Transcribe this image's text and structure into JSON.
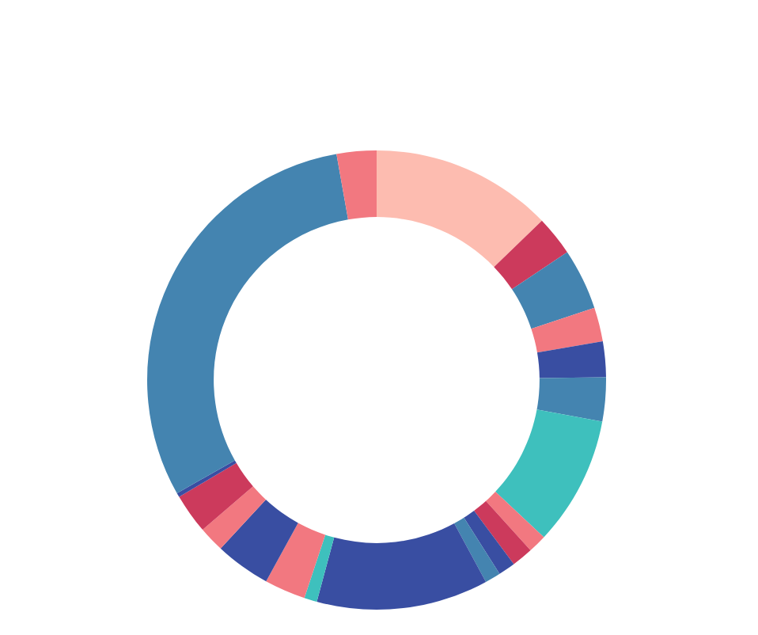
{
  "chart_data": {
    "type": "donut",
    "categories": [
      null,
      null,
      null,
      null,
      null,
      null,
      null,
      null,
      null,
      null,
      null,
      null,
      null,
      null,
      null,
      null,
      null,
      null,
      null,
      null
    ],
    "values": [
      12.8,
      2.8,
      4.3,
      2.4,
      2.5,
      3.1,
      9.1,
      1.3,
      1.5,
      1.2,
      1.1,
      12.1,
      0.9,
      2.9,
      3.9,
      1.8,
      2.8,
      0.3,
      30.4,
      2.8
    ],
    "colors": [
      "#fdbcb0",
      "#cc3a5c",
      "#4484b0",
      "#f27880",
      "#394ea2",
      "#4484b0",
      "#3ec0bd",
      "#f27880",
      "#cc3a5c",
      "#394ea2",
      "#4484b0",
      "#394ea2",
      "#3ec0bd",
      "#f27880",
      "#394ea2",
      "#f27880",
      "#cc3a5c",
      "#394ea2",
      "#4484b0",
      "#f27880"
    ]
  }
}
